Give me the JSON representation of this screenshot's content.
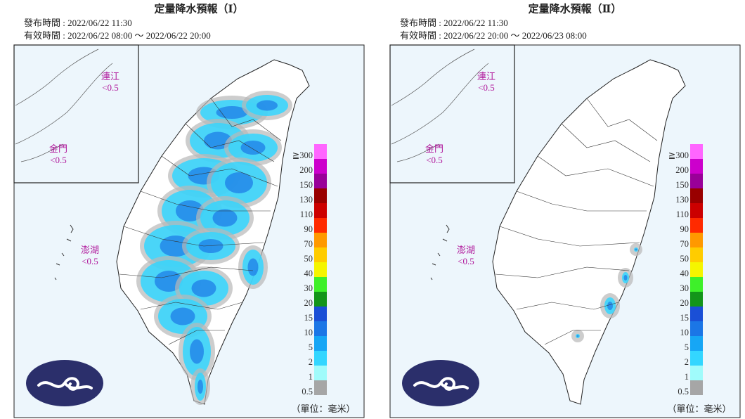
{
  "panels": [
    {
      "title": "定量降水預報（Ⅰ）",
      "issued": "發布時間 : 2022/06/22 11:30",
      "valid": "有效時間 : 2022/06/22 08:00 ～ 2022/06/22 20:00",
      "islands": [
        {
          "name": "連江",
          "value": "<0.5"
        },
        {
          "name": "金門",
          "value": "<0.5"
        },
        {
          "name": "澎湖",
          "value": "<0.5"
        }
      ],
      "unit": "（單位：毫米）"
    },
    {
      "title": "定量降水預報（Ⅱ）",
      "issued": "發布時間 : 2022/06/22 11:30",
      "valid": "有效時間 : 2022/06/22 20:00 ～ 2022/06/23 08:00",
      "islands": [
        {
          "name": "連江",
          "value": "<0.5"
        },
        {
          "name": "金門",
          "value": "<0.5"
        },
        {
          "name": "澎湖",
          "value": "<0.5"
        }
      ],
      "unit": "（單位：毫米）"
    }
  ],
  "legend": [
    {
      "label": "0.5",
      "color": "#a6a6a6"
    },
    {
      "label": "1",
      "color": "#a0fbfb"
    },
    {
      "label": "2",
      "color": "#33d6ff"
    },
    {
      "label": "5",
      "color": "#16a6f5"
    },
    {
      "label": "10",
      "color": "#1b76e6"
    },
    {
      "label": "15",
      "color": "#1a4fd6"
    },
    {
      "label": "20",
      "color": "#13951a"
    },
    {
      "label": "30",
      "color": "#3ef02a"
    },
    {
      "label": "40",
      "color": "#f5f500"
    },
    {
      "label": "50",
      "color": "#ffcc00"
    },
    {
      "label": "70",
      "color": "#ff9900"
    },
    {
      "label": "90",
      "color": "#ff2a00"
    },
    {
      "label": "110",
      "color": "#cc0000"
    },
    {
      "label": "130",
      "color": "#990000"
    },
    {
      "label": "150",
      "color": "#990099"
    },
    {
      "label": "200",
      "color": "#cc00cc"
    },
    {
      "label": "≧300",
      "color": "#ff66ff"
    }
  ]
}
